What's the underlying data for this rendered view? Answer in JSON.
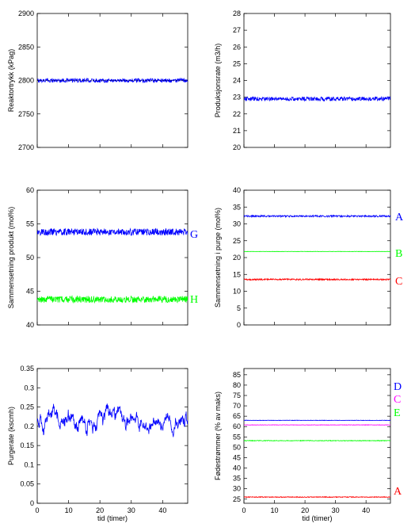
{
  "chart_data": [
    {
      "type": "line",
      "ylabel": "Reaktortrykk (kPag)",
      "xlabel": "",
      "xlim": [
        0,
        48
      ],
      "ylim": [
        2700,
        2900
      ],
      "yticks": [
        2700,
        2750,
        2800,
        2850,
        2900
      ],
      "xticks": [],
      "series": [
        {
          "name": "",
          "color": "#0000ff",
          "mean": 2800,
          "noise": 3,
          "setpoint": 2800
        }
      ]
    },
    {
      "type": "line",
      "ylabel": "Produksjonsrate (m3/h)",
      "xlabel": "",
      "xlim": [
        0,
        48
      ],
      "ylim": [
        20,
        28
      ],
      "yticks": [
        20,
        21,
        22,
        23,
        24,
        25,
        26,
        27,
        28
      ],
      "xticks": [],
      "series": [
        {
          "name": "",
          "color": "#0000ff",
          "mean": 22.9,
          "noise": 0.12
        }
      ]
    },
    {
      "type": "line",
      "ylabel": "Sammensetning produkt (mol%)",
      "xlabel": "",
      "xlim": [
        0,
        48
      ],
      "ylim": [
        40,
        60
      ],
      "yticks": [
        40,
        45,
        50,
        55,
        60
      ],
      "xticks": [],
      "series": [
        {
          "name": "G",
          "color": "#0000ff",
          "mean": 53.8,
          "noise": 0.5
        },
        {
          "name": "H",
          "color": "#00ff00",
          "mean": 43.8,
          "noise": 0.5
        }
      ]
    },
    {
      "type": "line",
      "ylabel": "Sammensetning i purge (mol%)",
      "xlabel": "",
      "xlim": [
        0,
        48
      ],
      "ylim": [
        0,
        40
      ],
      "yticks": [
        0,
        5,
        10,
        15,
        20,
        25,
        30,
        35,
        40
      ],
      "xticks": [],
      "series": [
        {
          "name": "A",
          "color": "#0000ff",
          "mean": 32.3,
          "noise": 0.25
        },
        {
          "name": "B",
          "color": "#00ff00",
          "mean": 21.8,
          "noise": 0.05
        },
        {
          "name": "C",
          "color": "#ff0000",
          "mean": 13.5,
          "noise": 0.2
        }
      ]
    },
    {
      "type": "line",
      "ylabel": "Purgerate (kscmh)",
      "xlabel": "tid (timer)",
      "xlim": [
        0,
        48
      ],
      "ylim": [
        0,
        0.35
      ],
      "yticks": [
        0,
        0.05,
        0.1,
        0.15,
        0.2,
        0.25,
        0.3,
        0.35
      ],
      "xticks": [
        0,
        10,
        20,
        30,
        40
      ],
      "series": [
        {
          "name": "",
          "color": "#0000ff",
          "mean": 0.215,
          "noise": 0.02
        }
      ]
    },
    {
      "type": "line",
      "ylabel": "Fødestrømmer (% av maks)",
      "xlabel": "tid (timer)",
      "xlim": [
        0,
        48
      ],
      "ylim": [
        23,
        88
      ],
      "yticks": [
        25,
        30,
        35,
        40,
        45,
        50,
        55,
        60,
        65,
        70,
        75,
        80,
        85
      ],
      "xticks": [
        0,
        10,
        20,
        30,
        40
      ],
      "series": [
        {
          "name": "D",
          "color": "#0000ff",
          "mean": 63.0,
          "noise": 0.1
        },
        {
          "name": "C",
          "color": "#ff00ff",
          "mean": 60.8,
          "noise": 0.1
        },
        {
          "name": "E",
          "color": "#00ff00",
          "mean": 53.2,
          "noise": 0.15
        },
        {
          "name": "A",
          "color": "#ff0000",
          "mean": 26.0,
          "noise": 0.2
        }
      ]
    }
  ]
}
